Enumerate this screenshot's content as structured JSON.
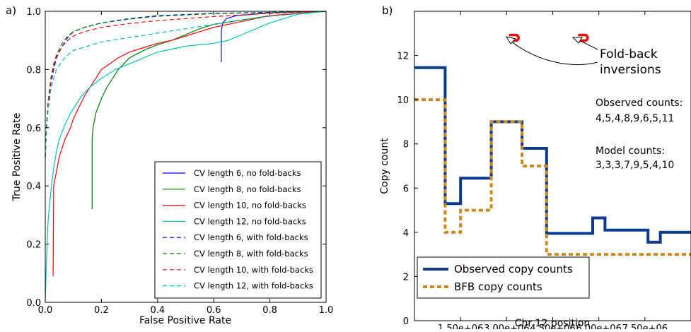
{
  "chart_data": [
    {
      "type": "line",
      "panel_label": "a)",
      "xlabel": "False Positive Rate",
      "ylabel": "True Positive Rate",
      "xlim": [
        0.0,
        1.0
      ],
      "ylim": [
        0.0,
        1.0
      ],
      "x_ticks": [
        "0.0",
        "0.2",
        "0.4",
        "0.6",
        "0.8",
        "1.0"
      ],
      "y_ticks": [
        "0.0",
        "0.2",
        "0.4",
        "0.6",
        "0.8",
        "1.0"
      ],
      "legend_position": "lower-right",
      "series": [
        {
          "name": "CV length 6, no fold-backs",
          "color": "#0000ff",
          "dash": "solid",
          "points": [
            [
              0.627,
              0.825
            ],
            [
              0.627,
              0.93
            ],
            [
              0.632,
              0.96
            ],
            [
              0.645,
              0.975
            ],
            [
              0.68,
              0.985
            ],
            [
              0.8,
              0.995
            ],
            [
              1.0,
              1.0
            ]
          ]
        },
        {
          "name": "CV length 8, no fold-backs",
          "color": "#008000",
          "dash": "solid",
          "points": [
            [
              0.167,
              0.32
            ],
            [
              0.167,
              0.56
            ],
            [
              0.17,
              0.6
            ],
            [
              0.18,
              0.65
            ],
            [
              0.2,
              0.7
            ],
            [
              0.22,
              0.74
            ],
            [
              0.24,
              0.77
            ],
            [
              0.26,
              0.8
            ],
            [
              0.28,
              0.82
            ],
            [
              0.3,
              0.84
            ],
            [
              0.33,
              0.855
            ],
            [
              0.36,
              0.87
            ],
            [
              0.4,
              0.885
            ],
            [
              0.45,
              0.9
            ],
            [
              0.5,
              0.92
            ],
            [
              0.55,
              0.94
            ],
            [
              0.6,
              0.955
            ],
            [
              0.7,
              0.97
            ],
            [
              0.8,
              0.985
            ],
            [
              1.0,
              1.0
            ]
          ]
        },
        {
          "name": "CV length 10, no fold-backs",
          "color": "#ff0000",
          "dash": "solid",
          "points": [
            [
              0.028,
              0.09
            ],
            [
              0.03,
              0.4
            ],
            [
              0.04,
              0.45
            ],
            [
              0.05,
              0.5
            ],
            [
              0.06,
              0.53
            ],
            [
              0.07,
              0.56
            ],
            [
              0.08,
              0.58
            ],
            [
              0.09,
              0.6
            ],
            [
              0.1,
              0.63
            ],
            [
              0.12,
              0.67
            ],
            [
              0.14,
              0.71
            ],
            [
              0.16,
              0.74
            ],
            [
              0.18,
              0.77
            ],
            [
              0.2,
              0.8
            ],
            [
              0.23,
              0.82
            ],
            [
              0.26,
              0.84
            ],
            [
              0.3,
              0.86
            ],
            [
              0.35,
              0.875
            ],
            [
              0.4,
              0.89
            ],
            [
              0.45,
              0.9
            ],
            [
              0.5,
              0.915
            ],
            [
              0.55,
              0.93
            ],
            [
              0.6,
              0.945
            ],
            [
              0.7,
              0.965
            ],
            [
              0.8,
              0.985
            ],
            [
              1.0,
              1.0
            ]
          ]
        },
        {
          "name": "CV length 12, no fold-backs",
          "color": "#00bfbf",
          "dash": "solid",
          "points": [
            [
              0.0,
              0.01
            ],
            [
              0.005,
              0.16
            ],
            [
              0.01,
              0.28
            ],
            [
              0.02,
              0.38
            ],
            [
              0.03,
              0.46
            ],
            [
              0.04,
              0.52
            ],
            [
              0.05,
              0.56
            ],
            [
              0.07,
              0.61
            ],
            [
              0.09,
              0.65
            ],
            [
              0.11,
              0.68
            ],
            [
              0.13,
              0.71
            ],
            [
              0.16,
              0.74
            ],
            [
              0.2,
              0.77
            ],
            [
              0.25,
              0.8
            ],
            [
              0.3,
              0.82
            ],
            [
              0.35,
              0.84
            ],
            [
              0.4,
              0.86
            ],
            [
              0.45,
              0.87
            ],
            [
              0.5,
              0.88
            ],
            [
              0.55,
              0.885
            ],
            [
              0.6,
              0.89
            ],
            [
              0.65,
              0.9
            ],
            [
              0.7,
              0.92
            ],
            [
              0.75,
              0.94
            ],
            [
              0.8,
              0.96
            ],
            [
              0.85,
              0.975
            ],
            [
              0.9,
              0.99
            ],
            [
              1.0,
              1.0
            ]
          ]
        },
        {
          "name": "CV length 6, with fold-backs",
          "color": "#0000ff",
          "dash": "dashed",
          "points": [
            [
              0.0,
              0.5
            ],
            [
              0.005,
              0.6
            ],
            [
              0.01,
              0.67
            ],
            [
              0.02,
              0.75
            ],
            [
              0.03,
              0.8
            ],
            [
              0.04,
              0.84
            ],
            [
              0.06,
              0.88
            ],
            [
              0.08,
              0.91
            ],
            [
              0.1,
              0.93
            ],
            [
              0.14,
              0.945
            ],
            [
              0.2,
              0.96
            ],
            [
              0.3,
              0.975
            ],
            [
              0.4,
              0.985
            ],
            [
              0.6,
              0.993
            ],
            [
              1.0,
              1.0
            ]
          ]
        },
        {
          "name": "CV length 8, with fold-backs",
          "color": "#008000",
          "dash": "dashed",
          "points": [
            [
              0.0,
              0.5
            ],
            [
              0.005,
              0.62
            ],
            [
              0.01,
              0.69
            ],
            [
              0.02,
              0.77
            ],
            [
              0.03,
              0.82
            ],
            [
              0.04,
              0.85
            ],
            [
              0.06,
              0.89
            ],
            [
              0.08,
              0.915
            ],
            [
              0.1,
              0.93
            ],
            [
              0.14,
              0.945
            ],
            [
              0.2,
              0.96
            ],
            [
              0.3,
              0.973
            ],
            [
              0.4,
              0.983
            ],
            [
              0.6,
              0.992
            ],
            [
              1.0,
              1.0
            ]
          ]
        },
        {
          "name": "CV length 10, with fold-backs",
          "color": "#ff0000",
          "dash": "dashed",
          "points": [
            [
              0.0,
              0.5
            ],
            [
              0.005,
              0.61
            ],
            [
              0.01,
              0.68
            ],
            [
              0.02,
              0.76
            ],
            [
              0.03,
              0.81
            ],
            [
              0.04,
              0.845
            ],
            [
              0.06,
              0.88
            ],
            [
              0.08,
              0.9
            ],
            [
              0.1,
              0.915
            ],
            [
              0.14,
              0.93
            ],
            [
              0.2,
              0.945
            ],
            [
              0.3,
              0.958
            ],
            [
              0.4,
              0.968
            ],
            [
              0.5,
              0.975
            ],
            [
              0.6,
              0.982
            ],
            [
              0.8,
              0.993
            ],
            [
              1.0,
              1.0
            ]
          ]
        },
        {
          "name": "CV length 12, with fold-backs",
          "color": "#00bfbf",
          "dash": "dashed",
          "points": [
            [
              0.0,
              0.5
            ],
            [
              0.005,
              0.6
            ],
            [
              0.01,
              0.66
            ],
            [
              0.02,
              0.73
            ],
            [
              0.03,
              0.77
            ],
            [
              0.04,
              0.8
            ],
            [
              0.06,
              0.83
            ],
            [
              0.08,
              0.85
            ],
            [
              0.1,
              0.865
            ],
            [
              0.15,
              0.88
            ],
            [
              0.2,
              0.895
            ],
            [
              0.3,
              0.91
            ],
            [
              0.4,
              0.925
            ],
            [
              0.5,
              0.94
            ],
            [
              0.6,
              0.955
            ],
            [
              0.7,
              0.97
            ],
            [
              0.8,
              0.983
            ],
            [
              1.0,
              1.0
            ]
          ]
        }
      ]
    },
    {
      "type": "line",
      "panel_label": "b)",
      "xlabel": "Chr 12 position",
      "ylabel": "Copy count",
      "xlim": [
        0,
        9000000
      ],
      "ylim": [
        0,
        14
      ],
      "x_tick_values": [
        1500000,
        3000000,
        4500000,
        6000000,
        7500000
      ],
      "x_ticks": [
        "1.50e+06",
        "3.00e+06",
        "4.50e+06",
        "6.00e+06",
        "7.50e+06"
      ],
      "y_ticks": [
        "0",
        "2",
        "4",
        "6",
        "8",
        "10",
        "12"
      ],
      "legend_position": "lower-left",
      "series": [
        {
          "name": "Observed copy counts",
          "color": "#0b3b8c",
          "dash": "solid",
          "points": [
            [
              0,
              11.45
            ],
            [
              1000000,
              11.45
            ],
            [
              1000000,
              5.3
            ],
            [
              1500000,
              5.3
            ],
            [
              1500000,
              6.45
            ],
            [
              2500000,
              6.45
            ],
            [
              2500000,
              9.0
            ],
            [
              3500000,
              9.0
            ],
            [
              3500000,
              7.8
            ],
            [
              4300000,
              7.8
            ],
            [
              4300000,
              3.95
            ],
            [
              5800000,
              3.95
            ],
            [
              5800000,
              4.65
            ],
            [
              6200000,
              4.65
            ],
            [
              6200000,
              4.1
            ],
            [
              7600000,
              4.1
            ],
            [
              7600000,
              3.55
            ],
            [
              8000000,
              3.55
            ],
            [
              8000000,
              4.0
            ],
            [
              9000000,
              4.0
            ]
          ]
        },
        {
          "name": "BFB copy counts",
          "color": "#cc8a1e",
          "dash": "dashed",
          "points": [
            [
              0,
              10.0
            ],
            [
              1000000,
              10.0
            ],
            [
              1000000,
              4.0
            ],
            [
              1500000,
              4.0
            ],
            [
              1500000,
              5.0
            ],
            [
              2500000,
              5.0
            ],
            [
              2500000,
              9.0
            ],
            [
              3500000,
              9.0
            ],
            [
              3500000,
              7.0
            ],
            [
              4300000,
              7.0
            ],
            [
              4300000,
              3.0
            ],
            [
              9000000,
              3.0
            ]
          ]
        }
      ],
      "annotations": {
        "foldback_label_line1": "Fold-back",
        "foldback_label_line2": "inversions",
        "observed_title": "Observed counts:",
        "observed_values": "4,5,4,8,9,6,5,11",
        "model_title": "Model counts:",
        "model_values": "3,3,3,7,9,5,4,10",
        "marker_color": "#ff0000",
        "marker_positions": [
          [
            3250000,
            12.8
          ],
          [
            5500000,
            12.8
          ]
        ]
      }
    }
  ]
}
